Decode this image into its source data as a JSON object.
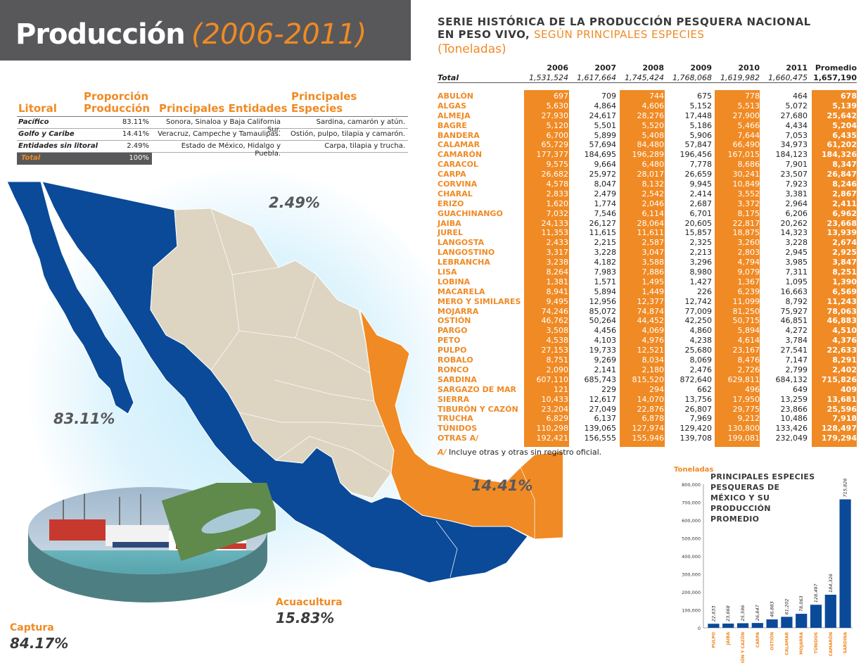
{
  "header": {
    "title": "Producción",
    "range": "(2006-2011)"
  },
  "serie": {
    "line1": "SERIE HISTÓRICA DE LA PRODUCCIÓN PESQUERA NACIONAL",
    "line2_bold": "EN PESO VIVO,",
    "line2_accent": "SEGÚN PRINCIPALES ESPECIES",
    "unit": "(Toneladas)"
  },
  "litoral": {
    "headers": [
      "Litoral",
      "Proporción Producción",
      "Principales Entidades",
      "Principales Especies"
    ],
    "rows": [
      {
        "name": "Pacífico",
        "pct": "83.11%",
        "ent": "Sonora, Sinaloa y Baja California Sur.",
        "esp": "Sardina, camarón y atún."
      },
      {
        "name": "Golfo y Caribe",
        "pct": "14.41%",
        "ent": "Veracruz, Campeche y Tamaulipas.",
        "esp": "Ostión, pulpo, tilapia y camarón."
      },
      {
        "name": "Entidades sin litoral",
        "pct": "2.49%",
        "ent": "Estado de México, Hidalgo y Puebla.",
        "esp": "Carpa, tilapia y trucha."
      }
    ],
    "total_label": "Total",
    "total_pct": "100%"
  },
  "map": {
    "pacifico": "83.11%",
    "sin_litoral": "2.49%",
    "golfo": "14.41%",
    "colors": {
      "pacifico": "#0a4a98",
      "golfo": "#f08a24",
      "interior": "#ddd5c2"
    }
  },
  "photo": {
    "captura_label": "Captura",
    "captura_pct": "84.17%",
    "acuacultura_label": "Acuacultura",
    "acuacultura_pct": "15.83%"
  },
  "table": {
    "years": [
      "2006",
      "2007",
      "2008",
      "2009",
      "2010",
      "2011",
      "Promedio"
    ],
    "total_label": "Total",
    "total": [
      "1,531,524",
      "1,617,664",
      "1,745,424",
      "1,768,068",
      "1,619,982",
      "1,660,475",
      "1,657,190"
    ],
    "rows": [
      {
        "n": "ABULÓN",
        "v": [
          "697",
          "709",
          "744",
          "675",
          "778",
          "464",
          "678"
        ]
      },
      {
        "n": "ALGAS",
        "v": [
          "5,630",
          "4,864",
          "4,606",
          "5,152",
          "5,513",
          "5,072",
          "5,139"
        ]
      },
      {
        "n": "ALMEJA",
        "v": [
          "27,930",
          "24,617",
          "28,276",
          "17,448",
          "27,900",
          "27,680",
          "25,642"
        ]
      },
      {
        "n": "BAGRE",
        "v": [
          "5,120",
          "5,501",
          "5,520",
          "5,186",
          "5,466",
          "4,434",
          "5,204"
        ]
      },
      {
        "n": "BANDERA",
        "v": [
          "6,700",
          "5,899",
          "5,408",
          "5,906",
          "7,644",
          "7,053",
          "6,435"
        ]
      },
      {
        "n": "CALAMAR",
        "v": [
          "65,729",
          "57,694",
          "84,480",
          "57,847",
          "66,490",
          "34,973",
          "61,202"
        ]
      },
      {
        "n": "CAMARÓN",
        "v": [
          "177,377",
          "184,695",
          "196,289",
          "196,456",
          "167,015",
          "184,123",
          "184,326"
        ]
      },
      {
        "n": "CARACOL",
        "v": [
          "9,575",
          "9,664",
          "6,480",
          "7,778",
          "8,686",
          "7,901",
          "8,347"
        ]
      },
      {
        "n": "CARPA",
        "v": [
          "26,682",
          "25,972",
          "28,017",
          "26,659",
          "30,241",
          "23,507",
          "26,847"
        ]
      },
      {
        "n": "CORVINA",
        "v": [
          "4,578",
          "8,047",
          "8,132",
          "9,945",
          "10,849",
          "7,923",
          "8,246"
        ]
      },
      {
        "n": "CHARAL",
        "v": [
          "2,833",
          "2,479",
          "2,542",
          "2,414",
          "3,552",
          "3,381",
          "2,867"
        ]
      },
      {
        "n": "ERIZO",
        "v": [
          "1,620",
          "1,774",
          "2,046",
          "2,687",
          "3,372",
          "2,964",
          "2,411"
        ]
      },
      {
        "n": "GUACHINANGO",
        "v": [
          "7,032",
          "7,546",
          "6,114",
          "6,701",
          "8,175",
          "6,206",
          "6,962"
        ]
      },
      {
        "n": "JAIBA",
        "v": [
          "24,133",
          "26,127",
          "28,064",
          "20,605",
          "22,817",
          "20,262",
          "23,668"
        ]
      },
      {
        "n": "JUREL",
        "v": [
          "11,353",
          "11,615",
          "11,611",
          "15,857",
          "18,875",
          "14,323",
          "13,939"
        ]
      },
      {
        "n": "LANGOSTA",
        "v": [
          "2,433",
          "2,215",
          "2,587",
          "2,325",
          "3,260",
          "3,228",
          "2,674"
        ]
      },
      {
        "n": "LANGOSTINO",
        "v": [
          "3,317",
          "3,228",
          "3,047",
          "2,213",
          "2,803",
          "2,945",
          "2,925"
        ]
      },
      {
        "n": "LEBRANCHA",
        "v": [
          "3,238",
          "4,182",
          "3,588",
          "3,296",
          "4,794",
          "3,985",
          "3,847"
        ]
      },
      {
        "n": "LISA",
        "v": [
          "8,264",
          "7,983",
          "7,886",
          "8,980",
          "9,079",
          "7,311",
          "8,251"
        ]
      },
      {
        "n": "LOBINA",
        "v": [
          "1,381",
          "1,571",
          "1,495",
          "1,427",
          "1,367",
          "1,095",
          "1,390"
        ]
      },
      {
        "n": "MACARELA",
        "v": [
          "8,941",
          "5,894",
          "1,449",
          "226",
          "6,239",
          "16,663",
          "6,569"
        ]
      },
      {
        "n": "MERO Y SIMILARES",
        "v": [
          "9,495",
          "12,956",
          "12,377",
          "12,742",
          "11,099",
          "8,792",
          "11,243"
        ]
      },
      {
        "n": "MOJARRA",
        "v": [
          "74,246",
          "85,072",
          "74,874",
          "77,009",
          "81,250",
          "75,927",
          "78,063"
        ]
      },
      {
        "n": "OSTIÓN",
        "v": [
          "46,762",
          "50,264",
          "44,452",
          "42,250",
          "50,715",
          "46,851",
          "46,883"
        ]
      },
      {
        "n": "PARGO",
        "v": [
          "3,508",
          "4,456",
          "4,069",
          "4,860",
          "5,894",
          "4,272",
          "4,510"
        ]
      },
      {
        "n": "PETO",
        "v": [
          "4,538",
          "4,103",
          "4,976",
          "4,238",
          "4,614",
          "3,784",
          "4,376"
        ]
      },
      {
        "n": "PULPO",
        "v": [
          "27,153",
          "19,733",
          "12,521",
          "25,680",
          "23,167",
          "27,541",
          "22,633"
        ]
      },
      {
        "n": "ROBALO",
        "v": [
          "8,751",
          "9,269",
          "8,034",
          "8,069",
          "8,476",
          "7,147",
          "8,291"
        ]
      },
      {
        "n": "RONCO",
        "v": [
          "2,090",
          "2,141",
          "2,180",
          "2,476",
          "2,726",
          "2,799",
          "2,402"
        ]
      },
      {
        "n": "SARDINA",
        "v": [
          "607,110",
          "685,743",
          "815,520",
          "872,640",
          "629,811",
          "684,132",
          "715,826"
        ]
      },
      {
        "n": "SARGAZO DE MAR",
        "v": [
          "121",
          "229",
          "294",
          "662",
          "496",
          "649",
          "409"
        ]
      },
      {
        "n": "SIERRA",
        "v": [
          "10,433",
          "12,617",
          "14,070",
          "13,756",
          "17,950",
          "13,259",
          "13,681"
        ]
      },
      {
        "n": "TIBURÓN Y CAZÓN",
        "v": [
          "23,204",
          "27,049",
          "22,876",
          "26,807",
          "29,775",
          "23,866",
          "25,596"
        ]
      },
      {
        "n": "TRUCHA",
        "v": [
          "6,829",
          "6,137",
          "6,878",
          "7,969",
          "9,212",
          "10,486",
          "7,918"
        ]
      },
      {
        "n": "TÚNIDOS",
        "v": [
          "110,298",
          "139,065",
          "127,974",
          "129,420",
          "130,800",
          "133,426",
          "128,497"
        ]
      },
      {
        "n": "OTRAS A/",
        "v": [
          "192,421",
          "156,555",
          "155,946",
          "139,708",
          "199,081",
          "232,049",
          "179,294"
        ]
      }
    ],
    "note_mark": "A/",
    "note_text": " Incluye otras  y otras sin registro oficial."
  },
  "chart_data": {
    "type": "bar",
    "title": "PRINCIPALES ESPECIES PESQUERAS DE MÉXICO Y SU PRODUCCIÓN PROMEDIO",
    "ylabel": "Toneladas",
    "ylim": [
      0,
      800000
    ],
    "yticks": [
      "0",
      "100,000",
      "200,000",
      "300,000",
      "400,000",
      "500,000",
      "600,000",
      "700,000",
      "800,000"
    ],
    "categories": [
      "PULPO",
      "JAIBA",
      "TIBURÓN Y CAZÓN",
      "CARPA",
      "OSTIÓN",
      "CALAMAR",
      "MOJARRA",
      "TÚNIDOS",
      "CAMARÓN",
      "SARDINA"
    ],
    "values": [
      22633,
      23668,
      25596,
      26847,
      46883,
      61202,
      78063,
      128497,
      184326,
      715826
    ],
    "labels": [
      "22,633",
      "23,668",
      "25,596",
      "26,847",
      "46,883",
      "61,202",
      "78,063",
      "128,497",
      "184,326",
      "715,826"
    ],
    "color": "#0a4a98"
  }
}
